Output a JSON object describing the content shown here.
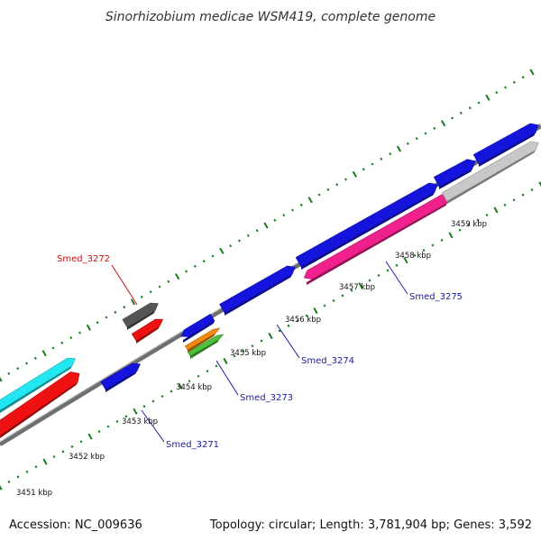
{
  "title": "Sinorhizobium medicae WSM419, complete genome",
  "footer": {
    "accession": "Accession: NC_009636",
    "topology": "Topology: circular; Length: 3,781,904 bp; Genes: 3,592"
  },
  "colors": {
    "backbone": "#8a8a8a",
    "tick": "#1a7a1a",
    "label_blue": "#1a1aa0",
    "label_red": "#cc1111"
  },
  "tick_labels": [
    {
      "name": "3451",
      "text": "3451 kbp"
    },
    {
      "name": "3452",
      "text": "3452 kbp"
    },
    {
      "name": "3453",
      "text": "3453 kbp"
    },
    {
      "name": "3454",
      "text": "3454 kbp"
    },
    {
      "name": "3455",
      "text": "3455 kbp"
    },
    {
      "name": "3456",
      "text": "3456 kbp"
    },
    {
      "name": "3457",
      "text": "3457 kbp"
    },
    {
      "name": "3458",
      "text": "3458 kbp"
    },
    {
      "name": "3459",
      "text": "3459 kbp"
    }
  ],
  "gene_labels": [
    {
      "name": "smed-3271",
      "text": "Smed_3271",
      "color": "#1a1aa0"
    },
    {
      "name": "smed-3272",
      "text": "Smed_3272",
      "color": "#cc1111"
    },
    {
      "name": "smed-3273",
      "text": "Smed_3273",
      "color": "#1a1aa0"
    },
    {
      "name": "smed-3274",
      "text": "Smed_3274",
      "color": "#1a1aa0"
    },
    {
      "name": "smed-3275",
      "text": "Smed_3275",
      "color": "#1a1aa0"
    }
  ],
  "features": [
    {
      "name": "cyan-feature",
      "color": "#22e6f0"
    },
    {
      "name": "red-feature-left",
      "color": "#ee1111"
    },
    {
      "name": "blue-feature-3271",
      "color": "#1414dd"
    },
    {
      "name": "gray-feature-3272",
      "color": "#555555"
    },
    {
      "name": "red-feature-3272",
      "color": "#ee1111"
    },
    {
      "name": "blue-feature-3273",
      "color": "#1414dd"
    },
    {
      "name": "orange-feature-3273",
      "color": "#f08a10"
    },
    {
      "name": "green-feature-3273",
      "color": "#4cc23a"
    },
    {
      "name": "blue-feature-3274a",
      "color": "#1414dd"
    },
    {
      "name": "blue-feature-3274b",
      "color": "#1414dd"
    },
    {
      "name": "blue-feature-large",
      "color": "#1414dd"
    },
    {
      "name": "blue-feature-upper-1",
      "color": "#1414dd"
    },
    {
      "name": "blue-feature-upper-2",
      "color": "#1414dd"
    },
    {
      "name": "pink-feature-3275",
      "color": "#f0208c"
    },
    {
      "name": "lightgray-feature",
      "color": "#c8c8c8"
    }
  ]
}
